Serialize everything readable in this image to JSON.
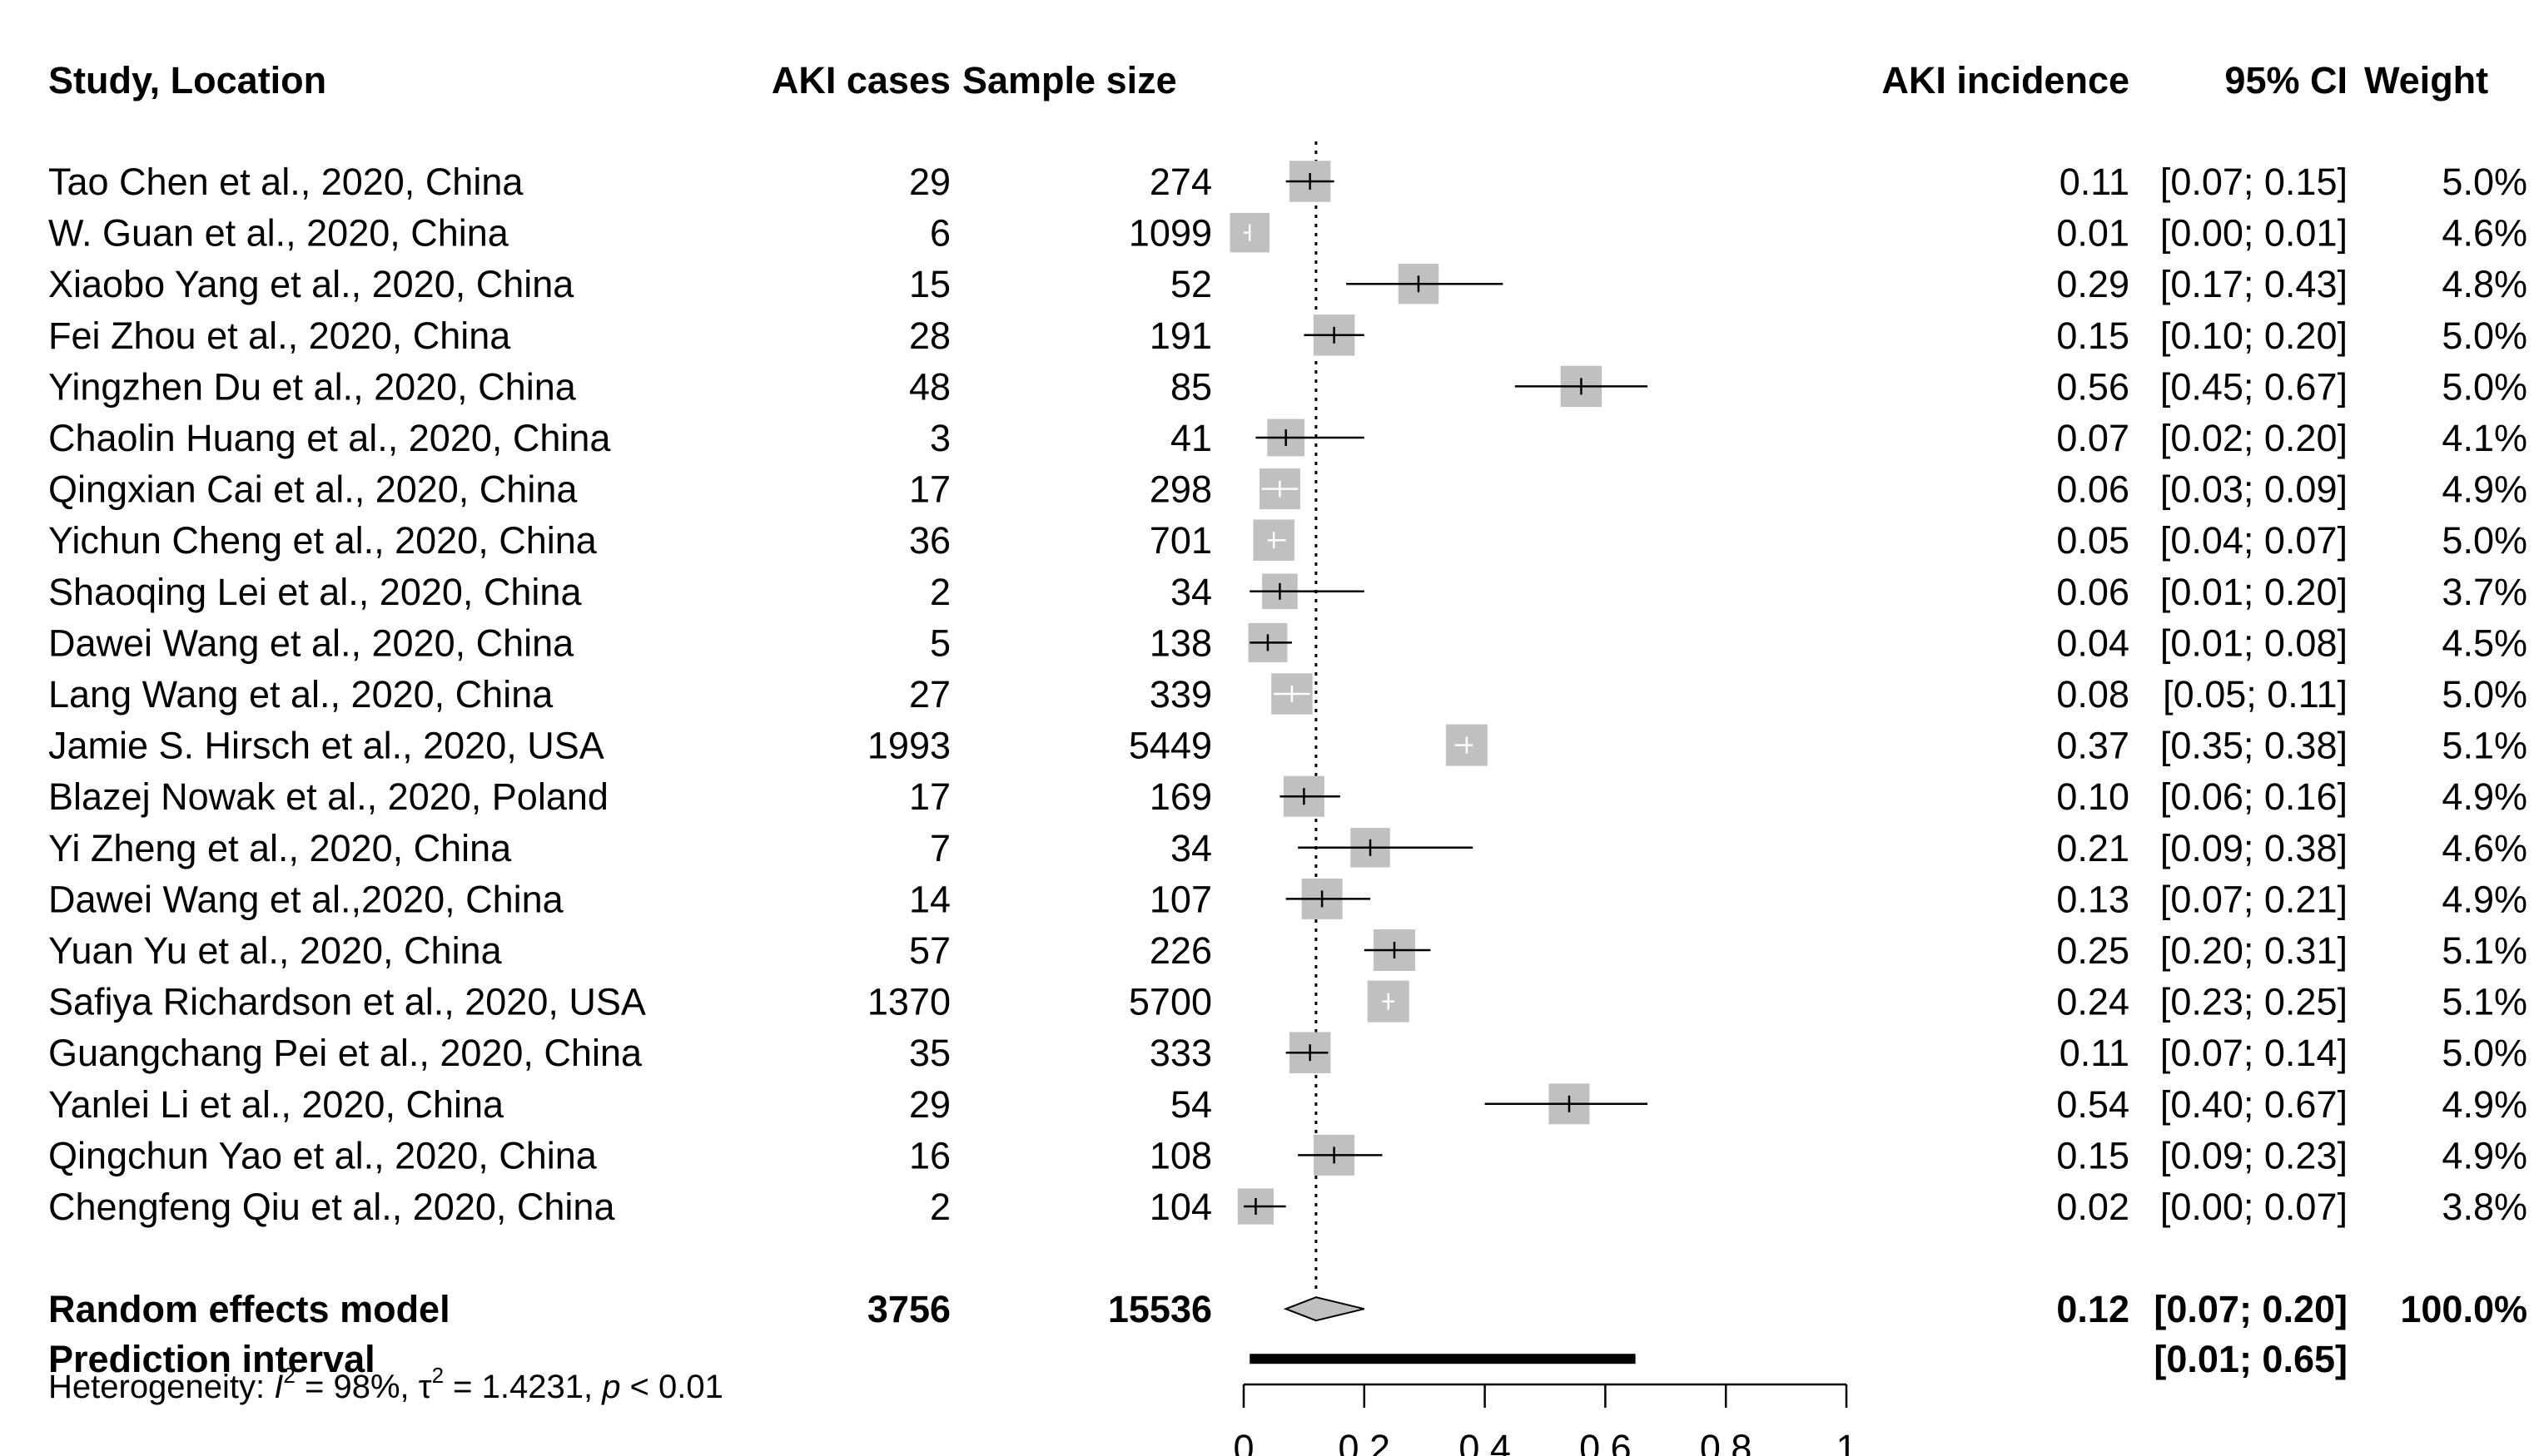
{
  "headers": {
    "study": "Study, Location",
    "cases": "AKI cases",
    "size": "Sample size",
    "incidence": "AKI incidence",
    "ci": "95% CI",
    "weight": "Weight"
  },
  "chart_data": {
    "type": "forest",
    "xlim": [
      0,
      1
    ],
    "x_ticks": [
      "0",
      "0.2",
      "0.4",
      "0.6",
      "0.8",
      "1"
    ],
    "reference_line": 0.12,
    "studies": [
      {
        "label": "Tao Chen et al., 2020, China",
        "cases": "29",
        "size": "274",
        "est": 0.11,
        "lo": 0.07,
        "hi": 0.15,
        "est_text": "0.11",
        "ci_text": "[0.07; 0.15]",
        "weight": 5.0,
        "weight_text": "5.0%"
      },
      {
        "label": "W. Guan et al., 2020, China",
        "cases": "6",
        "size": "1099",
        "est": 0.01,
        "lo": 0.0,
        "hi": 0.01,
        "est_text": "0.01",
        "ci_text": "[0.00; 0.01]",
        "weight": 4.6,
        "weight_text": "4.6%"
      },
      {
        "label": "Xiaobo Yang et al., 2020, China",
        "cases": "15",
        "size": "52",
        "est": 0.29,
        "lo": 0.17,
        "hi": 0.43,
        "est_text": "0.29",
        "ci_text": "[0.17; 0.43]",
        "weight": 4.8,
        "weight_text": "4.8%"
      },
      {
        "label": "Fei Zhou et al., 2020, China",
        "cases": "28",
        "size": "191",
        "est": 0.15,
        "lo": 0.1,
        "hi": 0.2,
        "est_text": "0.15",
        "ci_text": "[0.10; 0.20]",
        "weight": 5.0,
        "weight_text": "5.0%"
      },
      {
        "label": "Yingzhen Du et al., 2020, China",
        "cases": "48",
        "size": "85",
        "est": 0.56,
        "lo": 0.45,
        "hi": 0.67,
        "est_text": "0.56",
        "ci_text": "[0.45; 0.67]",
        "weight": 5.0,
        "weight_text": "5.0%"
      },
      {
        "label": "Chaolin Huang et al., 2020, China",
        "cases": "3",
        "size": "41",
        "est": 0.07,
        "lo": 0.02,
        "hi": 0.2,
        "est_text": "0.07",
        "ci_text": "[0.02; 0.20]",
        "weight": 4.1,
        "weight_text": "4.1%"
      },
      {
        "label": "Qingxian Cai et al., 2020, China",
        "cases": "17",
        "size": "298",
        "est": 0.06,
        "lo": 0.03,
        "hi": 0.09,
        "est_text": "0.06",
        "ci_text": "[0.03; 0.09]",
        "weight": 4.9,
        "weight_text": "4.9%"
      },
      {
        "label": "Yichun Cheng et al., 2020, China",
        "cases": "36",
        "size": "701",
        "est": 0.05,
        "lo": 0.04,
        "hi": 0.07,
        "est_text": "0.05",
        "ci_text": "[0.04; 0.07]",
        "weight": 5.0,
        "weight_text": "5.0%"
      },
      {
        "label": "Shaoqing Lei et al., 2020, China",
        "cases": "2",
        "size": "34",
        "est": 0.06,
        "lo": 0.01,
        "hi": 0.2,
        "est_text": "0.06",
        "ci_text": "[0.01; 0.20]",
        "weight": 3.7,
        "weight_text": "3.7%"
      },
      {
        "label": "Dawei Wang et al., 2020, China",
        "cases": "5",
        "size": "138",
        "est": 0.04,
        "lo": 0.01,
        "hi": 0.08,
        "est_text": "0.04",
        "ci_text": "[0.01; 0.08]",
        "weight": 4.5,
        "weight_text": "4.5%"
      },
      {
        "label": "Lang Wang et al., 2020, China",
        "cases": "27",
        "size": "339",
        "est": 0.08,
        "lo": 0.05,
        "hi": 0.11,
        "est_text": "0.08",
        "ci_text": "[0.05; 0.11]",
        "weight": 5.0,
        "weight_text": "5.0%"
      },
      {
        "label": "Jamie S. Hirsch et al., 2020, USA",
        "cases": "1993",
        "size": "5449",
        "est": 0.37,
        "lo": 0.35,
        "hi": 0.38,
        "est_text": "0.37",
        "ci_text": "[0.35; 0.38]",
        "weight": 5.1,
        "weight_text": "5.1%"
      },
      {
        "label": "Blazej Nowak et al., 2020, Poland",
        "cases": "17",
        "size": "169",
        "est": 0.1,
        "lo": 0.06,
        "hi": 0.16,
        "est_text": "0.10",
        "ci_text": "[0.06; 0.16]",
        "weight": 4.9,
        "weight_text": "4.9%"
      },
      {
        "label": "Yi Zheng et al., 2020, China",
        "cases": "7",
        "size": "34",
        "est": 0.21,
        "lo": 0.09,
        "hi": 0.38,
        "est_text": "0.21",
        "ci_text": "[0.09; 0.38]",
        "weight": 4.6,
        "weight_text": "4.6%"
      },
      {
        "label": "Dawei Wang et al.,2020, China",
        "cases": "14",
        "size": "107",
        "est": 0.13,
        "lo": 0.07,
        "hi": 0.21,
        "est_text": "0.13",
        "ci_text": "[0.07; 0.21]",
        "weight": 4.9,
        "weight_text": "4.9%"
      },
      {
        "label": "Yuan Yu et al., 2020, China",
        "cases": "57",
        "size": "226",
        "est": 0.25,
        "lo": 0.2,
        "hi": 0.31,
        "est_text": "0.25",
        "ci_text": "[0.20; 0.31]",
        "weight": 5.1,
        "weight_text": "5.1%"
      },
      {
        "label": "Safiya Richardson et al., 2020, USA",
        "cases": "1370",
        "size": "5700",
        "est": 0.24,
        "lo": 0.23,
        "hi": 0.25,
        "est_text": "0.24",
        "ci_text": "[0.23; 0.25]",
        "weight": 5.1,
        "weight_text": "5.1%"
      },
      {
        "label": "Guangchang Pei et al., 2020, China",
        "cases": "35",
        "size": "333",
        "est": 0.11,
        "lo": 0.07,
        "hi": 0.14,
        "est_text": "0.11",
        "ci_text": "[0.07; 0.14]",
        "weight": 5.0,
        "weight_text": "5.0%"
      },
      {
        "label": "Yanlei Li et al., 2020, China",
        "cases": "29",
        "size": "54",
        "est": 0.54,
        "lo": 0.4,
        "hi": 0.67,
        "est_text": "0.54",
        "ci_text": "[0.40; 0.67]",
        "weight": 4.9,
        "weight_text": "4.9%"
      },
      {
        "label": "Qingchun Yao et al., 2020, China",
        "cases": "16",
        "size": "108",
        "est": 0.15,
        "lo": 0.09,
        "hi": 0.23,
        "est_text": "0.15",
        "ci_text": "[0.09; 0.23]",
        "weight": 4.9,
        "weight_text": "4.9%"
      },
      {
        "label": "Chengfeng Qiu et al., 2020, China",
        "cases": "2",
        "size": "104",
        "est": 0.02,
        "lo": 0.0,
        "hi": 0.07,
        "est_text": "0.02",
        "ci_text": "[0.00; 0.07]",
        "weight": 3.8,
        "weight_text": "3.8%"
      }
    ],
    "pooled": {
      "label": "Random effects model",
      "cases": "3756",
      "size": "15536",
      "est": 0.12,
      "lo": 0.07,
      "hi": 0.2,
      "est_text": "0.12",
      "ci_text": "[0.07; 0.20]",
      "weight_text": "100.0%"
    },
    "prediction": {
      "label": "Prediction interval",
      "lo": 0.01,
      "hi": 0.65,
      "ci_text": "[0.01; 0.65]"
    },
    "heterogeneity": {
      "prefix": "Heterogeneity: ",
      "i2_symbol": "I",
      "i2_value": " = 98%, ",
      "tau2_symbol": "τ",
      "tau2_value": " = 1.4231, ",
      "p_symbol": "p",
      "p_value": " < 0.01"
    },
    "colors": {
      "box": "#c0c0c0",
      "line": "#000000",
      "diamond_fill": "#c0c0c0"
    }
  }
}
